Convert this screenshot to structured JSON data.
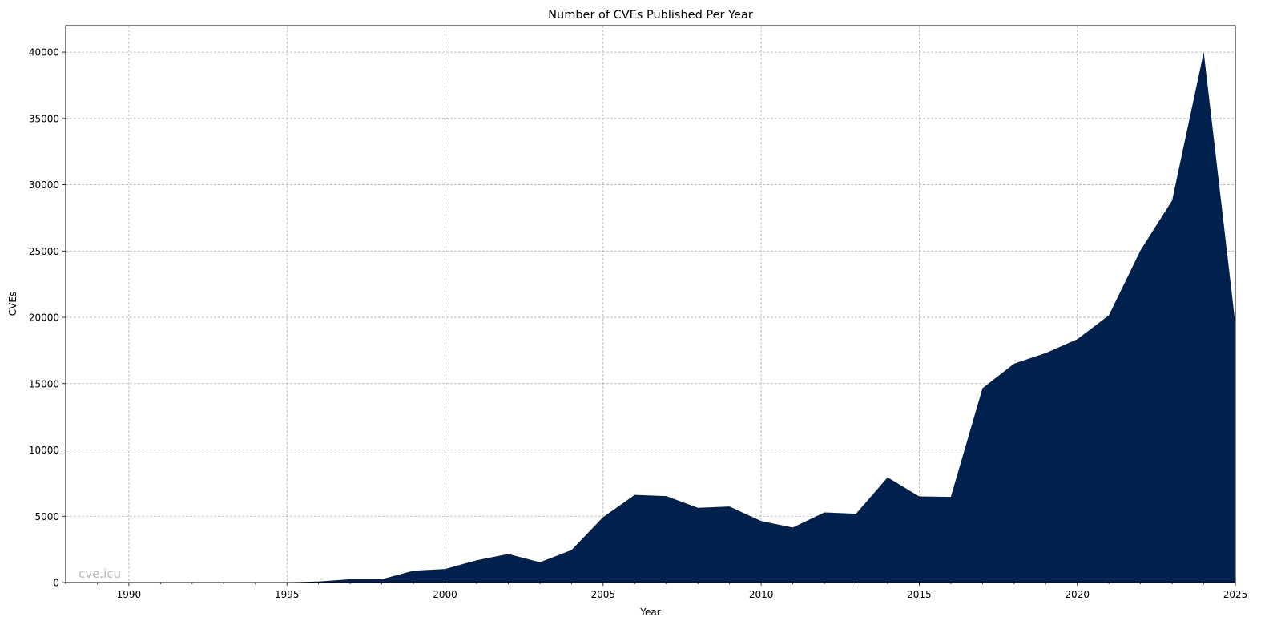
{
  "chart_data": {
    "type": "area",
    "title": "Number of CVEs Published Per Year",
    "xlabel": "Year",
    "ylabel": "CVEs",
    "xlim": [
      1988,
      2025
    ],
    "ylim": [
      0,
      42000
    ],
    "grid": true,
    "grid_style": "dashed",
    "fill_color": "#00214d",
    "watermark": "cve.icu",
    "watermark_color": "#bbbbbb",
    "x_major_ticks": [
      1990,
      1995,
      2000,
      2005,
      2010,
      2015,
      2020,
      2025
    ],
    "x_tick_labels": [
      "1990",
      "1995",
      "2000",
      "2005",
      "2010",
      "2015",
      "2020",
      "2025"
    ],
    "y_ticks": [
      0,
      5000,
      10000,
      15000,
      20000,
      25000,
      30000,
      35000,
      40000
    ],
    "y_tick_labels": [
      "0",
      "5000",
      "10000",
      "15000",
      "20000",
      "25000",
      "30000",
      "35000",
      "40000"
    ],
    "series": [
      {
        "name": "CVEs",
        "x": [
          1988,
          1989,
          1990,
          1991,
          1992,
          1993,
          1994,
          1995,
          1996,
          1997,
          1998,
          1999,
          2000,
          2001,
          2002,
          2003,
          2004,
          2005,
          2006,
          2007,
          2008,
          2009,
          2010,
          2011,
          2012,
          2013,
          2014,
          2015,
          2016,
          2017,
          2018,
          2019,
          2020,
          2021,
          2022,
          2023,
          2024,
          2025
        ],
        "values": [
          2,
          3,
          11,
          15,
          13,
          13,
          25,
          25,
          75,
          252,
          246,
          894,
          1020,
          1677,
          2156,
          1527,
          2451,
          4932,
          6608,
          6516,
          5632,
          5732,
          4639,
          4150,
          5288,
          5186,
          7928,
          6494,
          6457,
          14644,
          16509,
          17305,
          18350,
          20155,
          25059,
          28818,
          40009,
          19500
        ]
      }
    ]
  }
}
